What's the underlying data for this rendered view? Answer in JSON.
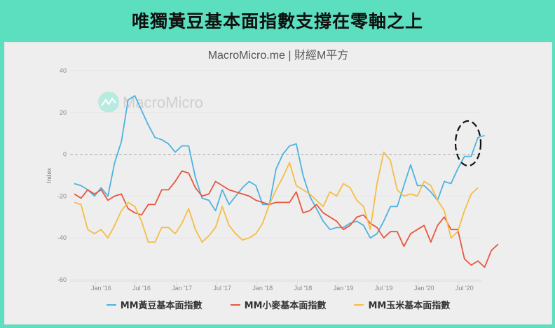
{
  "banner": {
    "title": "唯獨黃豆基本面指數支撐在零軸之上"
  },
  "chart_header": {
    "subtitle": "MacroMicro.me | 財經M平方"
  },
  "watermark": {
    "text": "MacroMicro",
    "icon": "macromicro-logo-icon"
  },
  "colors": {
    "banner_bg": "#5cdfbf",
    "soybean": "#4db3e0",
    "wheat": "#e8573e",
    "corn": "#f5bd46",
    "zero_line": "#aaaaaa",
    "annotation": "#111111"
  },
  "chart_data": {
    "type": "line",
    "title": "MacroMicro.me | 財經M平方",
    "xlabel": "",
    "ylabel": "Index",
    "ylim": [
      -60,
      40
    ],
    "yticks": [
      40,
      20,
      0,
      -20,
      -40,
      -60
    ],
    "xtick_labels": [
      "Jan '16",
      "Jul '16",
      "Jan '17",
      "Jul '17",
      "Jan '18",
      "Jul '18",
      "Jan '19",
      "Jul '19",
      "Jan '20",
      "Jul '20"
    ],
    "x_start": "Sep '15",
    "x_end": "Sep '20",
    "frequency": "monthly",
    "reference_line": {
      "y": 0,
      "style": "dashed"
    },
    "annotation": {
      "type": "dashed-ellipse",
      "around": "MM黃豆基本面指數 latest values (Jul–Sep '20)"
    },
    "legend_position": "bottom",
    "grid": "horizontal",
    "series": [
      {
        "name": "MM黃豆基本面指數",
        "color": "#4db3e0",
        "values": [
          -14,
          -15,
          -17,
          -20,
          -16,
          -20,
          -4,
          6,
          26,
          28,
          21,
          14,
          8,
          7,
          5,
          1,
          4,
          4,
          -11,
          -21,
          -22,
          -27,
          -17,
          -24,
          -20,
          -16,
          -13,
          -15,
          -24,
          -24,
          -7,
          0,
          4,
          5,
          -10,
          -20,
          -26,
          -32,
          -36,
          -35,
          -35,
          -33,
          -32,
          -34,
          -40,
          -38,
          -32,
          -25,
          -25,
          -15,
          -5,
          -15,
          -15,
          -18,
          -22,
          -13,
          -14,
          -7,
          -1,
          -1,
          8,
          9
        ]
      },
      {
        "name": "MM小麥基本面指數",
        "color": "#e8573e",
        "values": [
          -19,
          -21,
          -17,
          -19,
          -17,
          -22,
          -20,
          -19,
          -26,
          -28,
          -29,
          -24,
          -24,
          -17,
          -17,
          -13,
          -8,
          -9,
          -16,
          -20,
          -19,
          -13,
          -15,
          -17,
          -18,
          -19,
          -20,
          -22,
          -23,
          -24,
          -23,
          -23,
          -23,
          -18,
          -28,
          -27,
          -24,
          -28,
          -30,
          -32,
          -36,
          -34,
          -30,
          -29,
          -33,
          -35,
          -40,
          -37,
          -37,
          -44,
          -38,
          -36,
          -34,
          -42,
          -34,
          -30,
          -36,
          -36,
          -50,
          -53,
          -51,
          -54,
          -46,
          -43
        ]
      },
      {
        "name": "MM玉米基本面指數",
        "color": "#f5bd46",
        "values": [
          -23,
          -24,
          -36,
          -38,
          -36,
          -40,
          -34,
          -27,
          -23,
          -25,
          -32,
          -42,
          -42,
          -35,
          -35,
          -38,
          -33,
          -26,
          -36,
          -42,
          -39,
          -35,
          -25,
          -34,
          -38,
          -41,
          -40,
          -38,
          -33,
          -24,
          -17,
          -11,
          -4,
          -15,
          -17,
          -19,
          -22,
          -25,
          -18,
          -20,
          -14,
          -16,
          -22,
          -25,
          -36,
          -14,
          1,
          -3,
          -17,
          -20,
          -19,
          -20,
          -13,
          -15,
          -22,
          -27,
          -40,
          -37,
          -27,
          -19,
          -16
        ]
      }
    ]
  },
  "legend": {
    "items": [
      {
        "label": "MM黃豆基本面指數",
        "color": "#4db3e0"
      },
      {
        "label": "MM小麥基本面指數",
        "color": "#e8573e"
      },
      {
        "label": "MM玉米基本面指數",
        "color": "#f5bd46"
      }
    ]
  }
}
